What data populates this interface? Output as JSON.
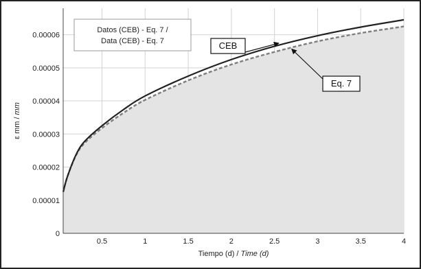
{
  "chart_data": {
    "type": "line",
    "xlabel": "Tiempo (d) / ",
    "xlabel_italic": "Time (d)",
    "ylabel": "ε mm / ",
    "ylabel_italic": "mm",
    "xlim": [
      0.05,
      4
    ],
    "ylim": [
      0,
      6.8e-05
    ],
    "x_ticks": [
      "0.5",
      "1",
      "1.5",
      "2",
      "2.5",
      "3",
      "3.5",
      "4"
    ],
    "y_ticks": [
      "0",
      "0.00001",
      "0.00002",
      "0.00003",
      "0.00004",
      "0.00005",
      "0.00006"
    ],
    "grid": true,
    "legend": {
      "position": "top-left",
      "lines": [
        "Datos (CEB) - Eq. 7 /",
        "Data (CEB) - Eq. 7"
      ]
    },
    "series": [
      {
        "name": "CEB",
        "style": "solid",
        "color": "#222222",
        "x": [
          0.05,
          0.1,
          0.2,
          0.3,
          0.5,
          0.75,
          1,
          1.5,
          2,
          2.5,
          3,
          3.5,
          4
        ],
        "y": [
          1.25e-05,
          1.72e-05,
          2.38e-05,
          2.78e-05,
          3.25e-05,
          3.74e-05,
          4.15e-05,
          4.75e-05,
          5.25e-05,
          5.65e-05,
          5.97e-05,
          6.23e-05,
          6.45e-05
        ]
      },
      {
        "name": "Eq. 7",
        "style": "dashed",
        "color": "#808080",
        "x": [
          0.05,
          0.1,
          0.2,
          0.3,
          0.5,
          0.75,
          1,
          1.5,
          2,
          2.5,
          3,
          3.5,
          4
        ],
        "y": [
          1.25e-05,
          1.72e-05,
          2.36e-05,
          2.73e-05,
          3.18e-05,
          3.64e-05,
          4.03e-05,
          4.62e-05,
          5.1e-05,
          5.48e-05,
          5.8e-05,
          6.05e-05,
          6.25e-05
        ]
      }
    ],
    "annotations": [
      {
        "text": "CEB",
        "target_series": 0,
        "target_x": 2.55
      },
      {
        "text": "Eq. 7",
        "target_series": 1,
        "target_x": 2.7
      }
    ]
  }
}
